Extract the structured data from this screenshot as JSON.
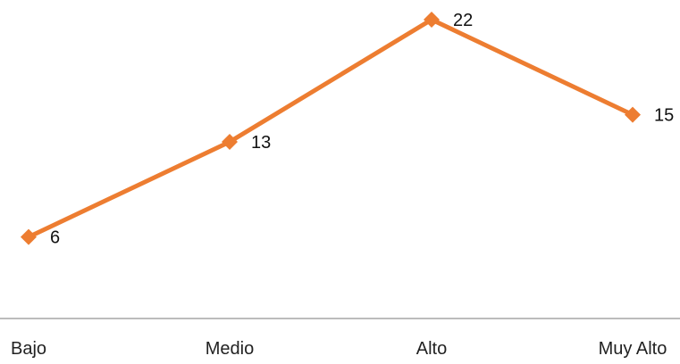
{
  "chart_data": {
    "type": "line",
    "categories": [
      "Bajo",
      "Medio",
      "Alto",
      "Muy Alto"
    ],
    "series": [
      {
        "values": [
          6,
          13,
          22,
          15
        ],
        "color": "#ED7D31",
        "marker": "diamond"
      }
    ],
    "title": "",
    "xlabel": "",
    "ylabel": "",
    "ylim": [
      0,
      22
    ],
    "grid": false,
    "legend": "none",
    "data_labels": true,
    "axis_color": "#A6A6A6"
  }
}
